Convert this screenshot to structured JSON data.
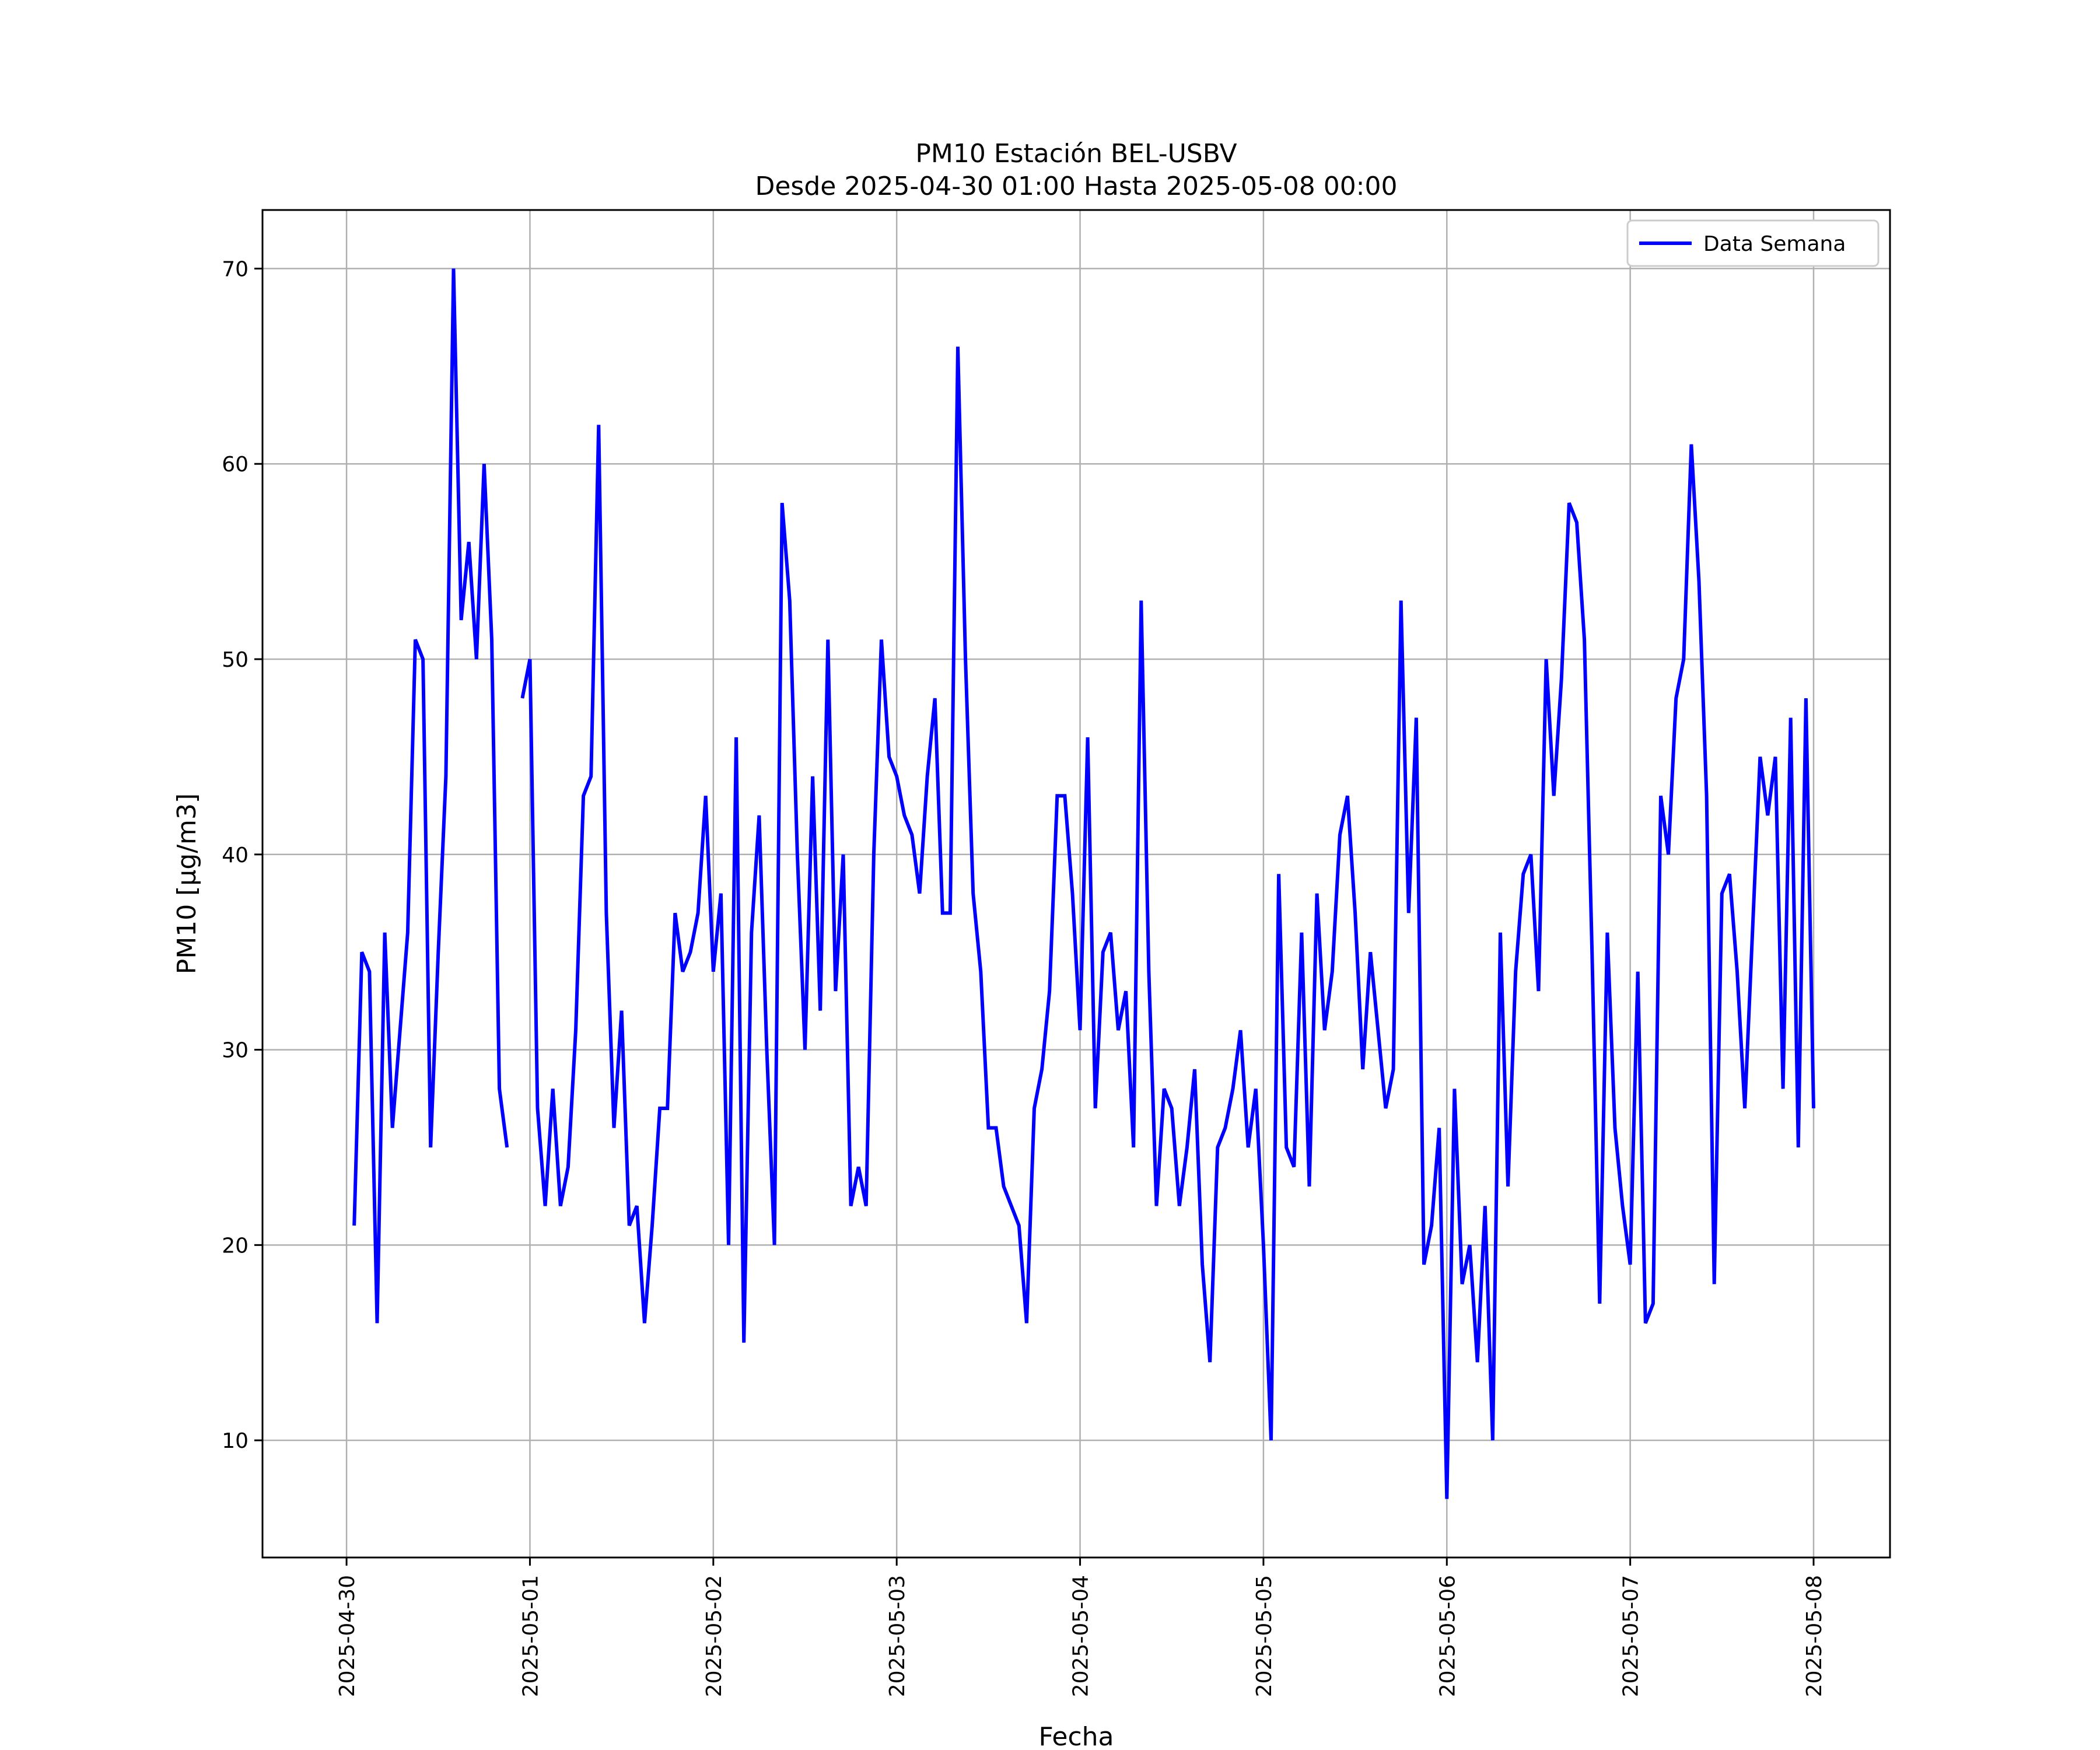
{
  "chart_data": {
    "type": "line",
    "title": "PM10 Estación BEL-USBV",
    "subtitle": "Desde 2025-04-30 01:00 Hasta 2025-05-08 00:00",
    "xlabel": "Fecha",
    "ylabel": "PM10 [μg/m3]",
    "ylim": [
      4,
      73
    ],
    "xlim": [
      "2025-04-29T13:00",
      "2025-05-08T10:00"
    ],
    "yticks": [
      10,
      20,
      30,
      40,
      50,
      60,
      70
    ],
    "ytick_labels": [
      "10",
      "20",
      "30",
      "40",
      "50",
      "60",
      "70"
    ],
    "xticks": [
      "2025-04-30",
      "2025-05-01",
      "2025-05-02",
      "2025-05-03",
      "2025-05-04",
      "2025-05-05",
      "2025-05-06",
      "2025-05-07",
      "2025-05-08"
    ],
    "xtick_labels": [
      "2025-04-30",
      "2025-05-01",
      "2025-05-02",
      "2025-05-03",
      "2025-05-04",
      "2025-05-05",
      "2025-05-06",
      "2025-05-07",
      "2025-05-08"
    ],
    "grid": true,
    "legend_position": "top-right",
    "colors": {
      "line": "#0000ff",
      "grid": "#b0b0b0",
      "axes": "#000000"
    },
    "series": [
      {
        "name": "Data Semana",
        "segments": [
          {
            "x": [
              "2025-04-30T01:00",
              "2025-04-30T02:00",
              "2025-04-30T03:00",
              "2025-04-30T04:00",
              "2025-04-30T05:00",
              "2025-04-30T06:00",
              "2025-04-30T07:00",
              "2025-04-30T08:00",
              "2025-04-30T09:00",
              "2025-04-30T10:00",
              "2025-04-30T11:00",
              "2025-04-30T12:00",
              "2025-04-30T13:00",
              "2025-04-30T14:00",
              "2025-04-30T15:00",
              "2025-04-30T16:00",
              "2025-04-30T17:00",
              "2025-04-30T18:00",
              "2025-04-30T19:00",
              "2025-04-30T20:00",
              "2025-04-30T21:00"
            ],
            "y": [
              21,
              35,
              34,
              16,
              36,
              26,
              31,
              36,
              51,
              50,
              25,
              35,
              44,
              70,
              52,
              56,
              50,
              60,
              51,
              28,
              25
            ]
          },
          {
            "x": [
              "2025-04-30T23:00",
              "2025-05-01T00:00",
              "2025-05-01T01:00",
              "2025-05-01T02:00",
              "2025-05-01T03:00",
              "2025-05-01T04:00",
              "2025-05-01T05:00",
              "2025-05-01T06:00",
              "2025-05-01T07:00",
              "2025-05-01T08:00",
              "2025-05-01T09:00",
              "2025-05-01T10:00",
              "2025-05-01T11:00",
              "2025-05-01T12:00",
              "2025-05-01T13:00",
              "2025-05-01T14:00",
              "2025-05-01T15:00",
              "2025-05-01T16:00",
              "2025-05-01T17:00",
              "2025-05-01T18:00",
              "2025-05-01T19:00",
              "2025-05-01T20:00",
              "2025-05-01T21:00",
              "2025-05-01T22:00",
              "2025-05-01T23:00",
              "2025-05-02T00:00",
              "2025-05-02T01:00",
              "2025-05-02T02:00",
              "2025-05-02T03:00",
              "2025-05-02T04:00",
              "2025-05-02T05:00",
              "2025-05-02T06:00",
              "2025-05-02T07:00",
              "2025-05-02T08:00",
              "2025-05-02T09:00",
              "2025-05-02T10:00",
              "2025-05-02T11:00",
              "2025-05-02T12:00",
              "2025-05-02T13:00",
              "2025-05-02T14:00",
              "2025-05-02T15:00",
              "2025-05-02T16:00",
              "2025-05-02T17:00",
              "2025-05-02T18:00",
              "2025-05-02T19:00",
              "2025-05-02T20:00",
              "2025-05-02T21:00",
              "2025-05-02T22:00",
              "2025-05-02T23:00",
              "2025-05-03T00:00",
              "2025-05-03T01:00",
              "2025-05-03T02:00",
              "2025-05-03T03:00",
              "2025-05-03T04:00",
              "2025-05-03T05:00",
              "2025-05-03T06:00",
              "2025-05-03T07:00",
              "2025-05-03T08:00",
              "2025-05-03T09:00",
              "2025-05-03T10:00",
              "2025-05-03T11:00",
              "2025-05-03T12:00",
              "2025-05-03T13:00",
              "2025-05-03T14:00",
              "2025-05-03T15:00",
              "2025-05-03T16:00",
              "2025-05-03T17:00",
              "2025-05-03T18:00",
              "2025-05-03T19:00",
              "2025-05-03T20:00",
              "2025-05-03T21:00",
              "2025-05-03T22:00",
              "2025-05-03T23:00",
              "2025-05-04T00:00",
              "2025-05-04T01:00",
              "2025-05-04T02:00",
              "2025-05-04T03:00",
              "2025-05-04T04:00",
              "2025-05-04T05:00",
              "2025-05-04T06:00",
              "2025-05-04T07:00",
              "2025-05-04T08:00",
              "2025-05-04T09:00",
              "2025-05-04T10:00",
              "2025-05-04T11:00",
              "2025-05-04T12:00",
              "2025-05-04T13:00",
              "2025-05-04T14:00",
              "2025-05-04T15:00",
              "2025-05-04T16:00",
              "2025-05-04T17:00",
              "2025-05-04T18:00",
              "2025-05-04T19:00",
              "2025-05-04T20:00",
              "2025-05-04T21:00",
              "2025-05-04T22:00",
              "2025-05-04T23:00",
              "2025-05-05T00:00",
              "2025-05-05T01:00",
              "2025-05-05T02:00",
              "2025-05-05T03:00",
              "2025-05-05T04:00",
              "2025-05-05T05:00",
              "2025-05-05T06:00",
              "2025-05-05T07:00",
              "2025-05-05T08:00",
              "2025-05-05T09:00",
              "2025-05-05T10:00",
              "2025-05-05T11:00",
              "2025-05-05T12:00",
              "2025-05-05T13:00",
              "2025-05-05T14:00",
              "2025-05-05T15:00",
              "2025-05-05T16:00",
              "2025-05-05T17:00",
              "2025-05-05T18:00",
              "2025-05-05T19:00",
              "2025-05-05T20:00",
              "2025-05-05T21:00",
              "2025-05-05T22:00",
              "2025-05-05T23:00",
              "2025-05-06T00:00",
              "2025-05-06T01:00",
              "2025-05-06T02:00",
              "2025-05-06T03:00",
              "2025-05-06T04:00",
              "2025-05-06T05:00",
              "2025-05-06T06:00",
              "2025-05-06T07:00",
              "2025-05-06T08:00",
              "2025-05-06T09:00",
              "2025-05-06T10:00",
              "2025-05-06T11:00",
              "2025-05-06T12:00",
              "2025-05-06T13:00",
              "2025-05-06T14:00",
              "2025-05-06T15:00",
              "2025-05-06T16:00",
              "2025-05-06T17:00",
              "2025-05-06T18:00",
              "2025-05-06T19:00",
              "2025-05-06T20:00",
              "2025-05-06T21:00",
              "2025-05-06T22:00",
              "2025-05-06T23:00",
              "2025-05-07T00:00",
              "2025-05-07T01:00",
              "2025-05-07T02:00",
              "2025-05-07T03:00",
              "2025-05-07T04:00",
              "2025-05-07T05:00",
              "2025-05-07T06:00",
              "2025-05-07T07:00",
              "2025-05-07T08:00",
              "2025-05-07T09:00",
              "2025-05-07T10:00",
              "2025-05-07T11:00",
              "2025-05-07T12:00",
              "2025-05-07T13:00",
              "2025-05-07T14:00",
              "2025-05-07T15:00",
              "2025-05-07T16:00",
              "2025-05-07T17:00",
              "2025-05-07T18:00",
              "2025-05-07T19:00",
              "2025-05-07T20:00",
              "2025-05-07T21:00",
              "2025-05-07T22:00",
              "2025-05-07T23:00",
              "2025-05-08T00:00"
            ],
            "y": [
              48,
              50,
              27,
              22,
              28,
              22,
              24,
              31,
              43,
              44,
              62,
              37,
              26,
              32,
              21,
              22,
              16,
              21,
              27,
              27,
              37,
              34,
              35,
              37,
              43,
              34,
              38,
              20,
              46,
              15,
              36,
              42,
              30,
              20,
              58,
              53,
              40,
              30,
              44,
              32,
              51,
              33,
              40,
              22,
              24,
              22,
              40,
              51,
              45,
              44,
              42,
              41,
              38,
              44,
              48,
              37,
              37,
              66,
              50,
              38,
              34,
              26,
              26,
              23,
              22,
              21,
              16,
              27,
              29,
              33,
              43,
              43,
              38,
              31,
              46,
              27,
              35,
              36,
              31,
              33,
              25,
              53,
              34,
              22,
              28,
              27,
              22,
              25,
              29,
              19,
              14,
              25,
              26,
              28,
              31,
              25,
              28,
              20,
              10,
              39,
              25,
              24,
              36,
              23,
              38,
              31,
              34,
              41,
              43,
              37,
              29,
              35,
              31,
              27,
              29,
              53,
              37,
              47,
              19,
              21,
              26,
              7,
              28,
              18,
              20,
              14,
              22,
              10,
              36,
              23,
              34,
              39,
              40,
              33,
              50,
              43,
              49,
              58,
              57,
              51,
              35,
              17,
              36,
              26,
              22,
              19,
              34,
              16,
              17,
              43,
              40,
              48,
              50,
              61,
              54,
              43,
              18,
              38,
              39,
              34,
              27,
              36,
              45,
              42,
              45,
              28,
              47,
              25,
              48,
              27
            ]
          }
        ]
      }
    ]
  }
}
